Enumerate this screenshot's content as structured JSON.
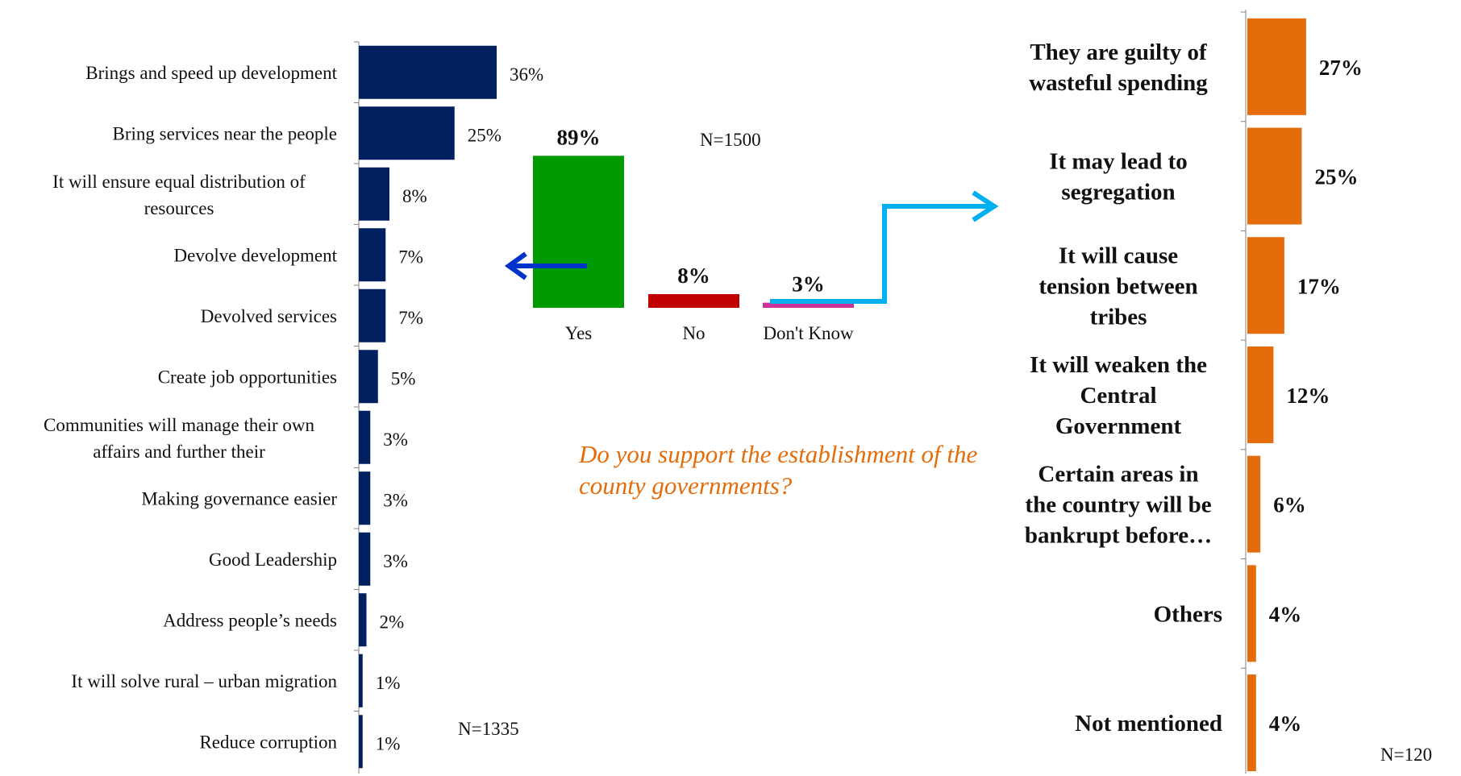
{
  "question": "Do you support the establishment of the county governments?",
  "colors": {
    "left_bar": "#002060",
    "yes": "#009900",
    "no": "#c00000",
    "dont_know": "#cc3399",
    "right_bar": "#e46c0a",
    "arrow_left": "#0033cc",
    "arrow_right": "#00b0f0",
    "question_text": "#e46c0a"
  },
  "chart_data": [
    {
      "type": "bar",
      "orientation": "horizontal",
      "categories": [
        "Brings and speed up development",
        "Bring services near the people",
        "It will ensure equal distribution of resources",
        "Devolve development",
        "Devolved services",
        "Create job opportunities",
        "Communities will manage their own affairs and further their",
        "Making governance easier",
        "Good Leadership",
        "Address people’s needs",
        "It will solve rural – urban migration",
        "Reduce corruption"
      ],
      "category_lines": [
        [
          "Brings and speed up development"
        ],
        [
          "Bring services near the people"
        ],
        [
          "It will ensure equal distribution of",
          "resources"
        ],
        [
          "Devolve development"
        ],
        [
          "Devolved services"
        ],
        [
          "Create job opportunities"
        ],
        [
          "Communities will manage their own",
          "affairs and further their"
        ],
        [
          "Making governance easier"
        ],
        [
          "Good Leadership"
        ],
        [
          "Address people’s needs"
        ],
        [
          "It will solve rural – urban migration"
        ],
        [
          "Reduce corruption"
        ]
      ],
      "values": [
        36,
        25,
        8,
        7,
        7,
        5,
        3,
        3,
        3,
        2,
        1,
        1
      ],
      "labels": [
        "36%",
        "25%",
        "8%",
        "7%",
        "7%",
        "5%",
        "3%",
        "3%",
        "3%",
        "2%",
        "1%",
        "1%"
      ],
      "unit": "%",
      "note": "N=1335"
    },
    {
      "type": "bar",
      "orientation": "vertical",
      "categories": [
        "Yes",
        "No",
        "Don't Know"
      ],
      "values": [
        89,
        8,
        3
      ],
      "labels": [
        "89%",
        "8%",
        "3%"
      ],
      "unit": "%",
      "note": "N=1500"
    },
    {
      "type": "bar",
      "orientation": "horizontal",
      "categories": [
        "They are guilty of wasteful spending",
        "It may lead to segregation",
        "It will cause tension between tribes",
        "It will weaken the Central Government",
        "Certain areas in the country will be bankrupt before…",
        "Others",
        "Not mentioned"
      ],
      "category_lines": [
        [
          "They are guilty of",
          "wasteful spending"
        ],
        [
          "It may lead to",
          "segregation"
        ],
        [
          "It will cause",
          "tension between",
          "tribes"
        ],
        [
          "It will weaken the",
          "Central",
          "Government"
        ],
        [
          "Certain areas in",
          "the country will be",
          "bankrupt before…"
        ],
        [
          "Others"
        ],
        [
          "Not mentioned"
        ]
      ],
      "values": [
        27,
        25,
        17,
        12,
        6,
        4,
        4
      ],
      "labels": [
        "27%",
        "25%",
        "17%",
        "12%",
        "6%",
        "4%",
        "4%"
      ],
      "unit": "%",
      "note": "N=120"
    }
  ]
}
